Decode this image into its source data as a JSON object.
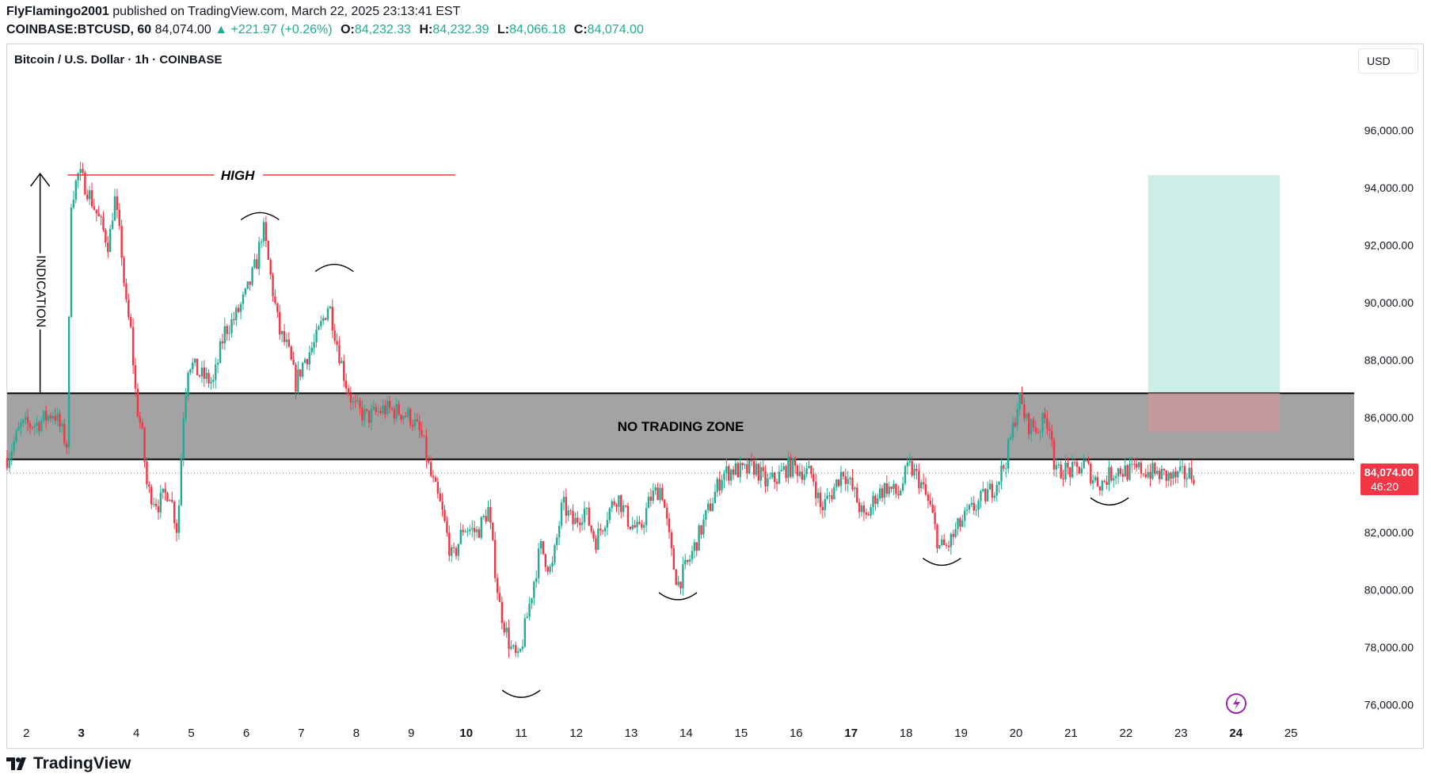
{
  "header": {
    "author": "FlyFlamingo2001",
    "published_text": "published on TradingView.com, March 22, 2025 23:13:41 EST",
    "symbol": "COINBASE:BTCUSD, 60",
    "last": "84,074.00",
    "change": "▲ +221.97 (+0.26%)",
    "o_label": "O:",
    "o_val": "84,232.33",
    "h_label": "H:",
    "h_val": "84,232.39",
    "l_label": "L:",
    "l_val": "84,066.18",
    "c_label": "C:",
    "c_val": "84,074.00"
  },
  "chart_title": "Bitcoin / U.S. Dollar · 1h · COINBASE",
  "currency_button": "USD",
  "footer": {
    "brand": "TradingView"
  },
  "colors": {
    "up": "#22ab94",
    "down": "#f23645",
    "zone": "#9e9e9e",
    "target": "#cdeee8",
    "stop": "#c99a9e",
    "annotation": "#f23645"
  },
  "chart_data": {
    "type": "candlestick",
    "title": "Bitcoin / U.S. Dollar · 1h · COINBASE",
    "ylim": [
      74500,
      99000
    ],
    "y_ticks": [
      76000,
      78000,
      80000,
      82000,
      84000,
      86000,
      88000,
      90000,
      92000,
      94000,
      96000
    ],
    "y_tick_labels": [
      "76,000.00",
      "78,000.00",
      "80,000.00",
      "82,000.00",
      "84,000.00",
      "86,000.00",
      "88,000.00",
      "90,000.00",
      "92,000.00",
      "94,000.00",
      "96,000.00"
    ],
    "x_labels": [
      {
        "t": "2",
        "d": 2,
        "bold": false
      },
      {
        "t": "3",
        "d": 3,
        "bold": true
      },
      {
        "t": "4",
        "d": 4,
        "bold": false
      },
      {
        "t": "5",
        "d": 5,
        "bold": false
      },
      {
        "t": "6",
        "d": 6,
        "bold": false
      },
      {
        "t": "7",
        "d": 7,
        "bold": false
      },
      {
        "t": "8",
        "d": 8,
        "bold": false
      },
      {
        "t": "9",
        "d": 9,
        "bold": false
      },
      {
        "t": "10",
        "d": 10,
        "bold": true
      },
      {
        "t": "11",
        "d": 11,
        "bold": false
      },
      {
        "t": "12",
        "d": 12,
        "bold": false
      },
      {
        "t": "13",
        "d": 13,
        "bold": false
      },
      {
        "t": "14",
        "d": 14,
        "bold": false
      },
      {
        "t": "15",
        "d": 15,
        "bold": false
      },
      {
        "t": "16",
        "d": 16,
        "bold": false
      },
      {
        "t": "17",
        "d": 17,
        "bold": true
      },
      {
        "t": "18",
        "d": 18,
        "bold": false
      },
      {
        "t": "19",
        "d": 19,
        "bold": false
      },
      {
        "t": "20",
        "d": 20,
        "bold": false
      },
      {
        "t": "21",
        "d": 21,
        "bold": false
      },
      {
        "t": "22",
        "d": 22,
        "bold": false
      },
      {
        "t": "23",
        "d": 23,
        "bold": false
      },
      {
        "t": "24",
        "d": 24,
        "bold": true
      },
      {
        "t": "25",
        "d": 25,
        "bold": false
      }
    ],
    "x_range_days": [
      1.65,
      26.15
    ],
    "close_path": [
      [
        1.65,
        84600
      ],
      [
        1.9,
        85700
      ],
      [
        2.2,
        85800
      ],
      [
        2.5,
        86200
      ],
      [
        2.75,
        85000
      ],
      [
        2.8,
        93500
      ],
      [
        2.95,
        94500
      ],
      [
        3.1,
        94000
      ],
      [
        3.3,
        93000
      ],
      [
        3.5,
        92000
      ],
      [
        3.6,
        93700
      ],
      [
        3.75,
        91500
      ],
      [
        3.8,
        90000
      ],
      [
        3.9,
        89000
      ],
      [
        4.0,
        86500
      ],
      [
        4.1,
        85500
      ],
      [
        4.2,
        83500
      ],
      [
        4.4,
        83000
      ],
      [
        4.6,
        83500
      ],
      [
        4.75,
        82000
      ],
      [
        4.85,
        86000
      ],
      [
        4.95,
        88000
      ],
      [
        5.15,
        87500
      ],
      [
        5.4,
        87200
      ],
      [
        5.6,
        89000
      ],
      [
        5.8,
        89500
      ],
      [
        6.0,
        90300
      ],
      [
        6.2,
        91500
      ],
      [
        6.3,
        92700
      ],
      [
        6.45,
        90800
      ],
      [
        6.6,
        89000
      ],
      [
        6.75,
        88400
      ],
      [
        6.9,
        87200
      ],
      [
        7.05,
        88000
      ],
      [
        7.25,
        88600
      ],
      [
        7.5,
        90000
      ],
      [
        7.65,
        88600
      ],
      [
        7.8,
        87300
      ],
      [
        7.95,
        86400
      ],
      [
        8.2,
        86000
      ],
      [
        8.5,
        86300
      ],
      [
        8.8,
        86200
      ],
      [
        9.0,
        86000
      ],
      [
        9.2,
        85300
      ],
      [
        9.35,
        84000
      ],
      [
        9.55,
        82800
      ],
      [
        9.75,
        81000
      ],
      [
        9.95,
        82200
      ],
      [
        10.2,
        82000
      ],
      [
        10.4,
        82800
      ],
      [
        10.6,
        79500
      ],
      [
        10.8,
        78000
      ],
      [
        10.95,
        77500
      ],
      [
        11.15,
        79500
      ],
      [
        11.35,
        81500
      ],
      [
        11.55,
        80600
      ],
      [
        11.75,
        83000
      ],
      [
        11.95,
        82300
      ],
      [
        12.15,
        82800
      ],
      [
        12.35,
        81700
      ],
      [
        12.55,
        82600
      ],
      [
        12.75,
        83300
      ],
      [
        12.95,
        82400
      ],
      [
        13.15,
        82000
      ],
      [
        13.35,
        83200
      ],
      [
        13.55,
        83600
      ],
      [
        13.75,
        81000
      ],
      [
        13.85,
        80200
      ],
      [
        14.05,
        81000
      ],
      [
        14.25,
        82000
      ],
      [
        14.45,
        83000
      ],
      [
        14.65,
        84000
      ],
      [
        14.85,
        84200
      ],
      [
        15.05,
        84100
      ],
      [
        15.25,
        84300
      ],
      [
        15.45,
        83700
      ],
      [
        15.65,
        83900
      ],
      [
        15.85,
        84300
      ],
      [
        16.05,
        84200
      ],
      [
        16.3,
        84000
      ],
      [
        16.45,
        82800
      ],
      [
        16.65,
        83400
      ],
      [
        16.85,
        84200
      ],
      [
        17.05,
        83400
      ],
      [
        17.25,
        82400
      ],
      [
        17.45,
        83300
      ],
      [
        17.65,
        83600
      ],
      [
        17.85,
        83300
      ],
      [
        18.05,
        84300
      ],
      [
        18.25,
        83800
      ],
      [
        18.45,
        82800
      ],
      [
        18.6,
        81500
      ],
      [
        18.75,
        81500
      ],
      [
        18.95,
        82200
      ],
      [
        19.15,
        82700
      ],
      [
        19.35,
        83100
      ],
      [
        19.6,
        83600
      ],
      [
        19.8,
        84400
      ],
      [
        19.95,
        85700
      ],
      [
        20.05,
        86700
      ],
      [
        20.2,
        85800
      ],
      [
        20.4,
        85600
      ],
      [
        20.55,
        86000
      ],
      [
        20.65,
        85500
      ],
      [
        20.7,
        84000
      ],
      [
        20.85,
        84200
      ],
      [
        21.05,
        84100
      ],
      [
        21.25,
        84400
      ],
      [
        21.4,
        83900
      ],
      [
        21.55,
        83700
      ],
      [
        21.7,
        84000
      ],
      [
        21.85,
        84200
      ],
      [
        22.05,
        84100
      ],
      [
        22.25,
        84200
      ],
      [
        22.45,
        84100
      ],
      [
        22.65,
        84000
      ],
      [
        22.85,
        83900
      ],
      [
        23.05,
        84000
      ],
      [
        23.25,
        84050
      ]
    ],
    "overlays": {
      "high_line": {
        "price": 94450,
        "x_from": 2.75,
        "x_to": 9.8,
        "label": "HIGH"
      },
      "no_trading_zone": {
        "top": 86850,
        "bottom": 84550,
        "label": "NO TRADING ZONE"
      },
      "indication_arrow": {
        "x": 2.25,
        "from_price": 86850,
        "to_price": 94500,
        "label": "INDICATION"
      },
      "target_box": {
        "x_from": 22.4,
        "x_to": 24.8,
        "top": 94450,
        "bottom": 86850
      },
      "stop_box": {
        "x_from": 22.4,
        "x_to": 24.8,
        "top": 86850,
        "bottom": 85500
      },
      "last_price_line": 84074,
      "arcs": [
        {
          "x": 6.25,
          "price": 93000,
          "dir": "top"
        },
        {
          "x": 7.6,
          "price": 91200,
          "dir": "top"
        },
        {
          "x": 11.0,
          "price": 76400,
          "dir": "bottom"
        },
        {
          "x": 13.85,
          "price": 79800,
          "dir": "bottom"
        },
        {
          "x": 18.65,
          "price": 81000,
          "dir": "bottom"
        },
        {
          "x": 21.7,
          "price": 83100,
          "dir": "bottom"
        }
      ]
    },
    "last_price_label": "84,074.00",
    "countdown_label": "46:20"
  }
}
